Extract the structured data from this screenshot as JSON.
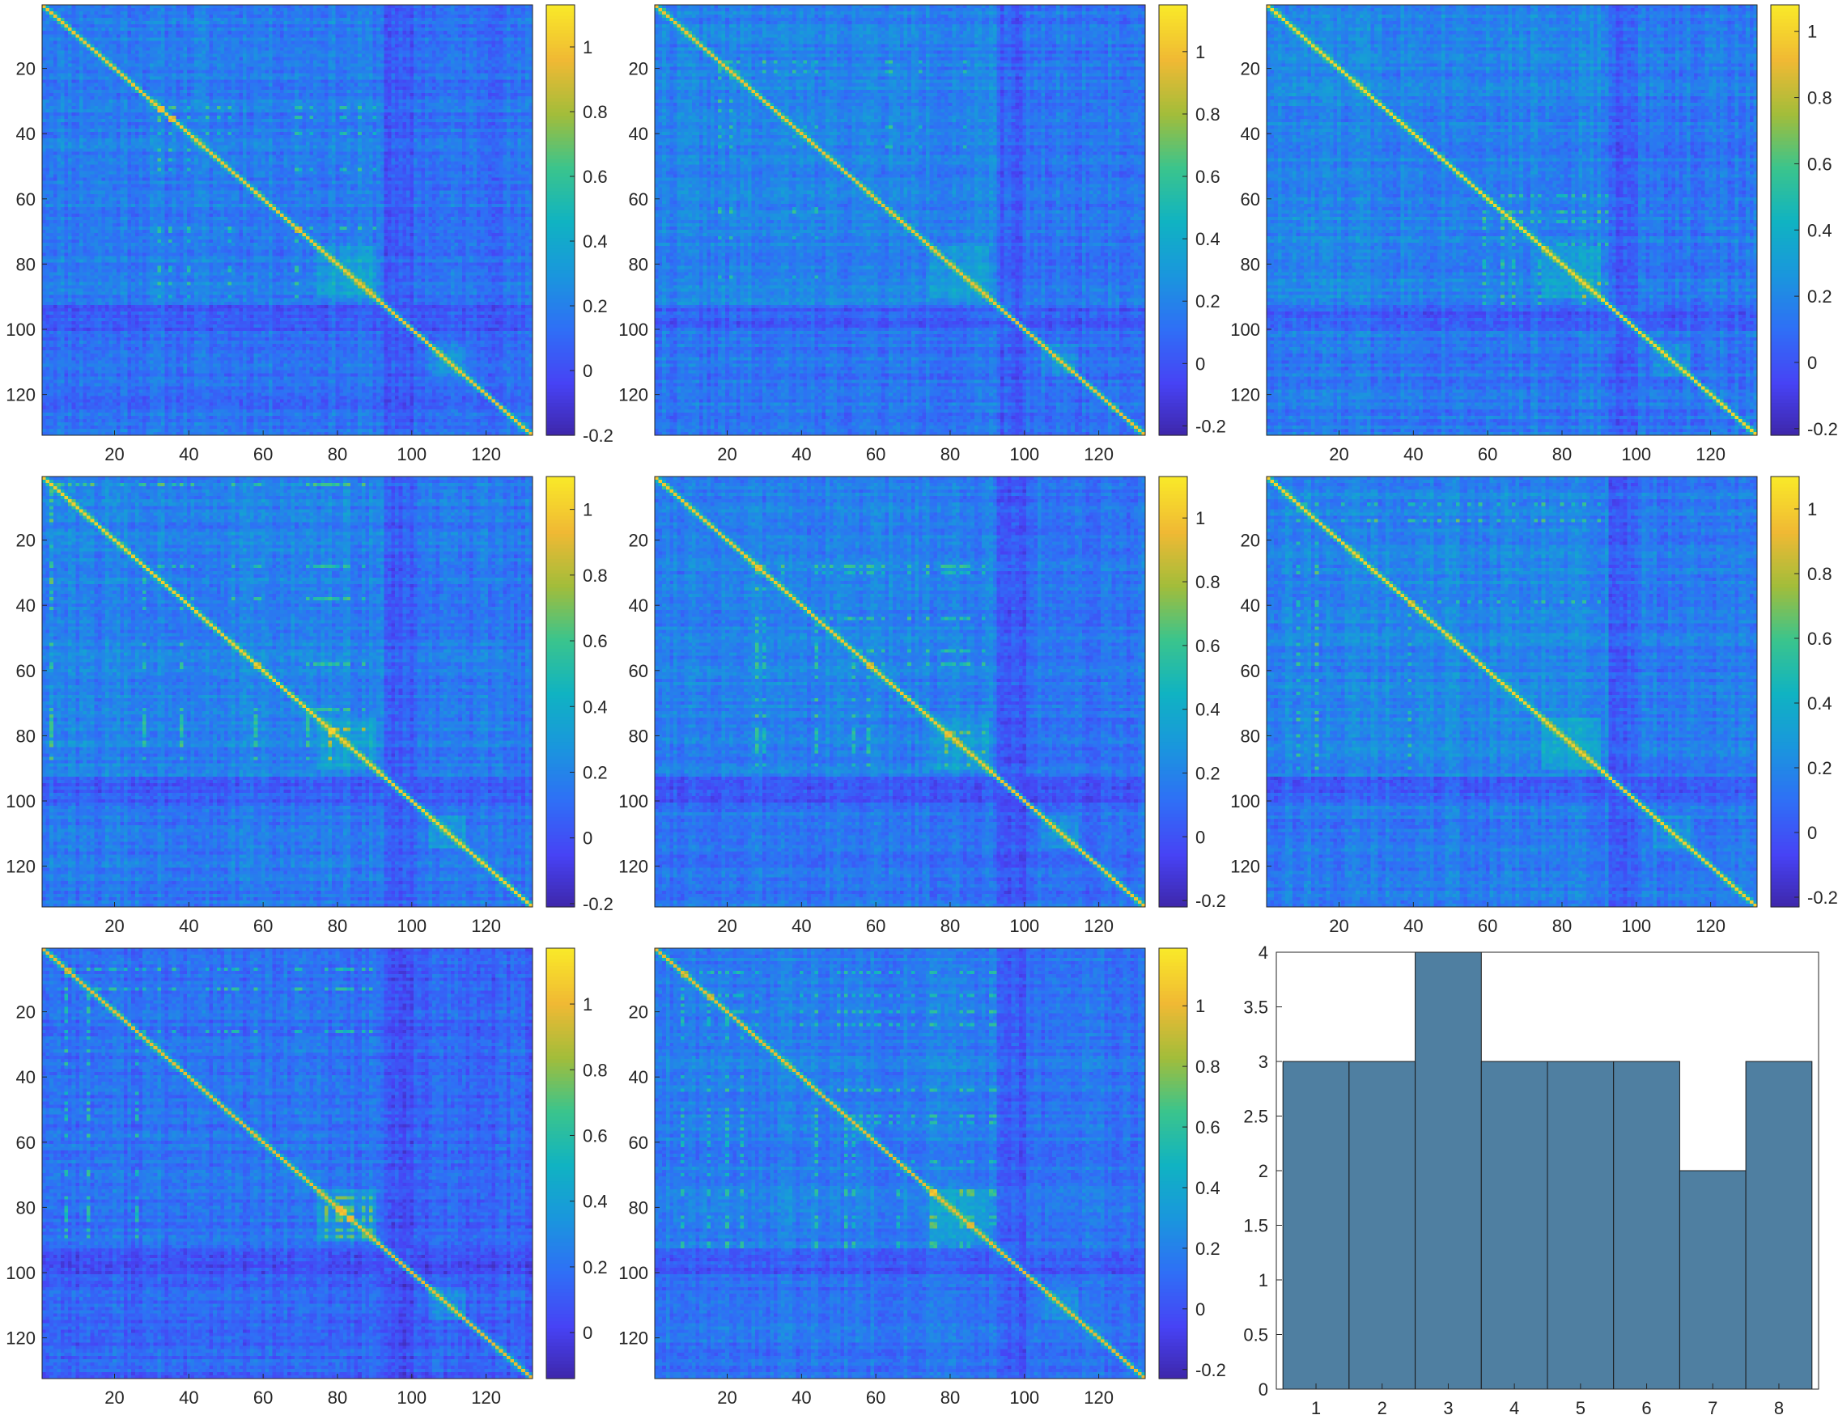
{
  "figure": {
    "layout": "3x3 grid: 8 correlation heatmaps + 1 histogram"
  },
  "colors": {
    "colormap": [
      "#3e26a8",
      "#4743f5",
      "#2f6ff6",
      "#1a96dd",
      "#10b3c2",
      "#3bc48c",
      "#a3bd3a",
      "#f0b934",
      "#f9e829"
    ],
    "bar_fill": "#4f7fa1",
    "bar_edge": "#1a1a1a",
    "axis": "#262626"
  },
  "chart_data": [
    {
      "type": "heatmap",
      "title": "",
      "size": 132,
      "xlim": [
        0.5,
        132.5
      ],
      "ylim": [
        0.5,
        132.5
      ],
      "x_ticks": [
        20,
        40,
        60,
        80,
        100,
        120
      ],
      "y_ticks": [
        20,
        40,
        60,
        80,
        100,
        120
      ],
      "colorbar": {
        "limits": [
          -0.2,
          1.13
        ],
        "ticks": [
          -0.2,
          0,
          0.2,
          0.4,
          0.6,
          0.8,
          1
        ],
        "tick_labels": [
          "-0.2",
          "0",
          "0.2",
          "0.4",
          "0.6",
          "0.8",
          "1"
        ]
      },
      "diagonal": 1,
      "seed": 11
    },
    {
      "type": "heatmap",
      "title": "",
      "size": 132,
      "xlim": [
        0.5,
        132.5
      ],
      "ylim": [
        0.5,
        132.5
      ],
      "x_ticks": [
        20,
        40,
        60,
        80,
        100,
        120
      ],
      "y_ticks": [
        20,
        40,
        60,
        80,
        100,
        120
      ],
      "colorbar": {
        "limits": [
          -0.23,
          1.15
        ],
        "ticks": [
          -0.2,
          0,
          0.2,
          0.4,
          0.6,
          0.8,
          1
        ],
        "tick_labels": [
          "-0.2",
          "0",
          "0.2",
          "0.4",
          "0.6",
          "0.8",
          "1"
        ]
      },
      "diagonal": 1,
      "seed": 22
    },
    {
      "type": "heatmap",
      "title": "",
      "size": 132,
      "xlim": [
        0.5,
        132.5
      ],
      "ylim": [
        0.5,
        132.5
      ],
      "x_ticks": [
        20,
        40,
        60,
        80,
        100,
        120
      ],
      "y_ticks": [
        20,
        40,
        60,
        80,
        100,
        120
      ],
      "colorbar": {
        "limits": [
          -0.22,
          1.08
        ],
        "ticks": [
          -0.2,
          0,
          0.2,
          0.4,
          0.6,
          0.8,
          1
        ],
        "tick_labels": [
          "-0.2",
          "0",
          "0.2",
          "0.4",
          "0.6",
          "0.8",
          "1"
        ]
      },
      "diagonal": 1,
      "seed": 33
    },
    {
      "type": "heatmap",
      "title": "",
      "size": 132,
      "xlim": [
        0.5,
        132.5
      ],
      "ylim": [
        0.5,
        132.5
      ],
      "x_ticks": [
        20,
        40,
        60,
        80,
        100,
        120
      ],
      "y_ticks": [
        20,
        40,
        60,
        80,
        100,
        120
      ],
      "colorbar": {
        "limits": [
          -0.21,
          1.1
        ],
        "ticks": [
          -0.2,
          0,
          0.2,
          0.4,
          0.6,
          0.8,
          1
        ],
        "tick_labels": [
          "-0.2",
          "0",
          "0.2",
          "0.4",
          "0.6",
          "0.8",
          "1"
        ]
      },
      "diagonal": 1,
      "seed": 44
    },
    {
      "type": "heatmap",
      "title": "",
      "size": 132,
      "xlim": [
        0.5,
        132.5
      ],
      "ylim": [
        0.5,
        132.5
      ],
      "x_ticks": [
        20,
        40,
        60,
        80,
        100,
        120
      ],
      "y_ticks": [
        20,
        40,
        60,
        80,
        100,
        120
      ],
      "colorbar": {
        "limits": [
          -0.22,
          1.13
        ],
        "ticks": [
          -0.2,
          0,
          0.2,
          0.4,
          0.6,
          0.8,
          1
        ],
        "tick_labels": [
          "-0.2",
          "0",
          "0.2",
          "0.4",
          "0.6",
          "0.8",
          "1"
        ]
      },
      "diagonal": 1,
      "seed": 55
    },
    {
      "type": "heatmap",
      "title": "",
      "size": 132,
      "xlim": [
        0.5,
        132.5
      ],
      "ylim": [
        0.5,
        132.5
      ],
      "x_ticks": [
        20,
        40,
        60,
        80,
        100,
        120
      ],
      "y_ticks": [
        20,
        40,
        60,
        80,
        100,
        120
      ],
      "colorbar": {
        "limits": [
          -0.23,
          1.1
        ],
        "ticks": [
          -0.2,
          0,
          0.2,
          0.4,
          0.6,
          0.8,
          1
        ],
        "tick_labels": [
          "-0.2",
          "0",
          "0.2",
          "0.4",
          "0.6",
          "0.8",
          "1"
        ]
      },
      "diagonal": 1,
      "seed": 66
    },
    {
      "type": "heatmap",
      "title": "",
      "size": 132,
      "xlim": [
        0.5,
        132.5
      ],
      "ylim": [
        0.5,
        132.5
      ],
      "x_ticks": [
        20,
        40,
        60,
        80,
        100,
        120
      ],
      "y_ticks": [
        20,
        40,
        60,
        80,
        100,
        120
      ],
      "colorbar": {
        "limits": [
          -0.14,
          1.17
        ],
        "ticks": [
          0,
          0.2,
          0.4,
          0.6,
          0.8,
          1
        ],
        "tick_labels": [
          "0",
          "0.2",
          "0.4",
          "0.6",
          "0.8",
          "1"
        ]
      },
      "diagonal": 1,
      "seed": 77
    },
    {
      "type": "heatmap",
      "title": "",
      "size": 132,
      "xlim": [
        0.5,
        132.5
      ],
      "ylim": [
        0.5,
        132.5
      ],
      "x_ticks": [
        20,
        40,
        60,
        80,
        100,
        120
      ],
      "y_ticks": [
        20,
        40,
        60,
        80,
        100,
        120
      ],
      "colorbar": {
        "limits": [
          -0.23,
          1.19
        ],
        "ticks": [
          -0.2,
          0,
          0.2,
          0.4,
          0.6,
          0.8,
          1
        ],
        "tick_labels": [
          "-0.2",
          "0",
          "0.2",
          "0.4",
          "0.6",
          "0.8",
          "1"
        ]
      },
      "diagonal": 1,
      "seed": 88
    },
    {
      "type": "bar",
      "title": "",
      "xlabel": "",
      "ylabel": "",
      "categories": [
        "1",
        "2",
        "3",
        "4",
        "5",
        "6",
        "7",
        "8"
      ],
      "values": [
        3,
        3,
        4,
        3,
        3,
        3,
        2,
        3
      ],
      "xlim": [
        0.4,
        8.6
      ],
      "ylim": [
        0,
        4
      ],
      "y_ticks": [
        0,
        0.5,
        1,
        1.5,
        2,
        2.5,
        3,
        3.5,
        4
      ],
      "y_tick_labels": [
        "0",
        "0.5",
        "1",
        "1.5",
        "2",
        "2.5",
        "3",
        "3.5",
        "4"
      ],
      "bar_width": 1
    }
  ]
}
